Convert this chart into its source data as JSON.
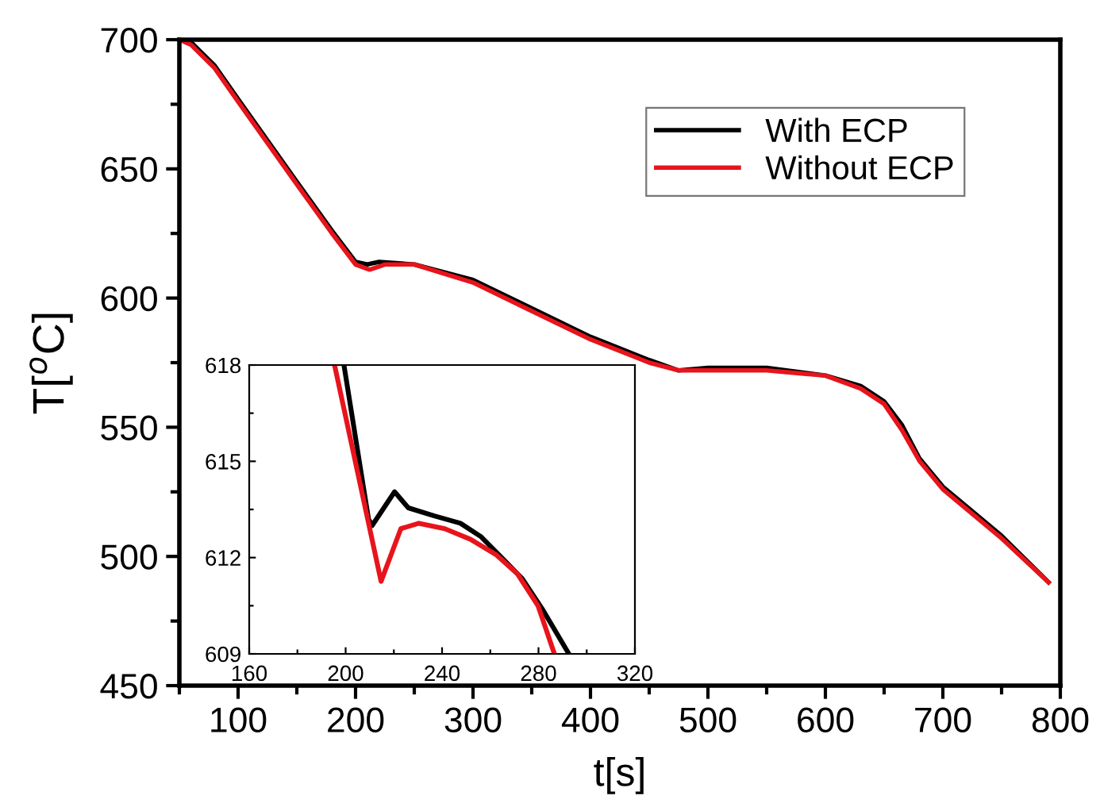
{
  "chart_data": [
    {
      "type": "line",
      "xlabel": "t[s]",
      "ylabel": "T[$^{o}$C]",
      "xlim": [
        50,
        800
      ],
      "ylim": [
        450,
        700
      ],
      "xticks": [
        100,
        200,
        300,
        400,
        500,
        600,
        700,
        800
      ],
      "yticks": [
        450,
        500,
        550,
        600,
        650,
        700
      ],
      "legend": "top right",
      "grid": false,
      "series": [
        {
          "name": "With ECP",
          "color": "#000000",
          "x": [
            50,
            60,
            80,
            100,
            150,
            180,
            200,
            210,
            220,
            250,
            300,
            350,
            400,
            450,
            475,
            500,
            550,
            600,
            630,
            650,
            665,
            680,
            700,
            750,
            790
          ],
          "values": [
            700,
            699,
            690,
            677,
            645,
            626,
            614,
            613,
            614,
            613,
            607,
            596,
            585,
            576,
            572,
            573,
            573,
            570,
            566,
            560,
            551,
            538,
            527,
            508,
            490
          ]
        },
        {
          "name": "Without ECP",
          "color": "#e8141c",
          "x": [
            50,
            60,
            80,
            100,
            150,
            180,
            200,
            212,
            225,
            250,
            300,
            350,
            400,
            450,
            475,
            500,
            550,
            600,
            630,
            650,
            665,
            680,
            700,
            750,
            790
          ],
          "values": [
            700,
            698,
            689,
            676,
            644,
            625,
            613,
            611,
            613,
            613,
            606,
            595,
            584,
            575,
            572,
            572,
            572,
            570,
            565,
            559,
            549,
            537,
            526,
            507,
            490
          ]
        }
      ]
    },
    {
      "type": "line",
      "xlim": [
        160,
        320
      ],
      "ylim": [
        609,
        618
      ],
      "xticks": [
        160,
        200,
        240,
        280,
        320
      ],
      "yticks": [
        609,
        612,
        615,
        618
      ],
      "grid": false,
      "series": [
        {
          "color": "#000000",
          "x": [
            199.3,
            209.5,
            211,
            220.3,
            226,
            236.8,
            247.6,
            256,
            264.7,
            273.3,
            281.9,
            292.6
          ],
          "values": [
            618,
            613.2,
            613.0,
            614.05,
            613.55,
            613.3,
            613.07,
            612.66,
            612.0,
            611.34,
            610.36,
            609.0
          ]
        },
        {
          "color": "#e8141c",
          "x": [
            195.4,
            214.7,
            222.9,
            230.4,
            241.1,
            251.8,
            262.6,
            271.2,
            279.8,
            286.6
          ],
          "values": [
            618,
            611.26,
            612.9,
            613.07,
            612.9,
            612.57,
            612.08,
            611.5,
            610.5,
            609.0
          ]
        }
      ]
    }
  ]
}
